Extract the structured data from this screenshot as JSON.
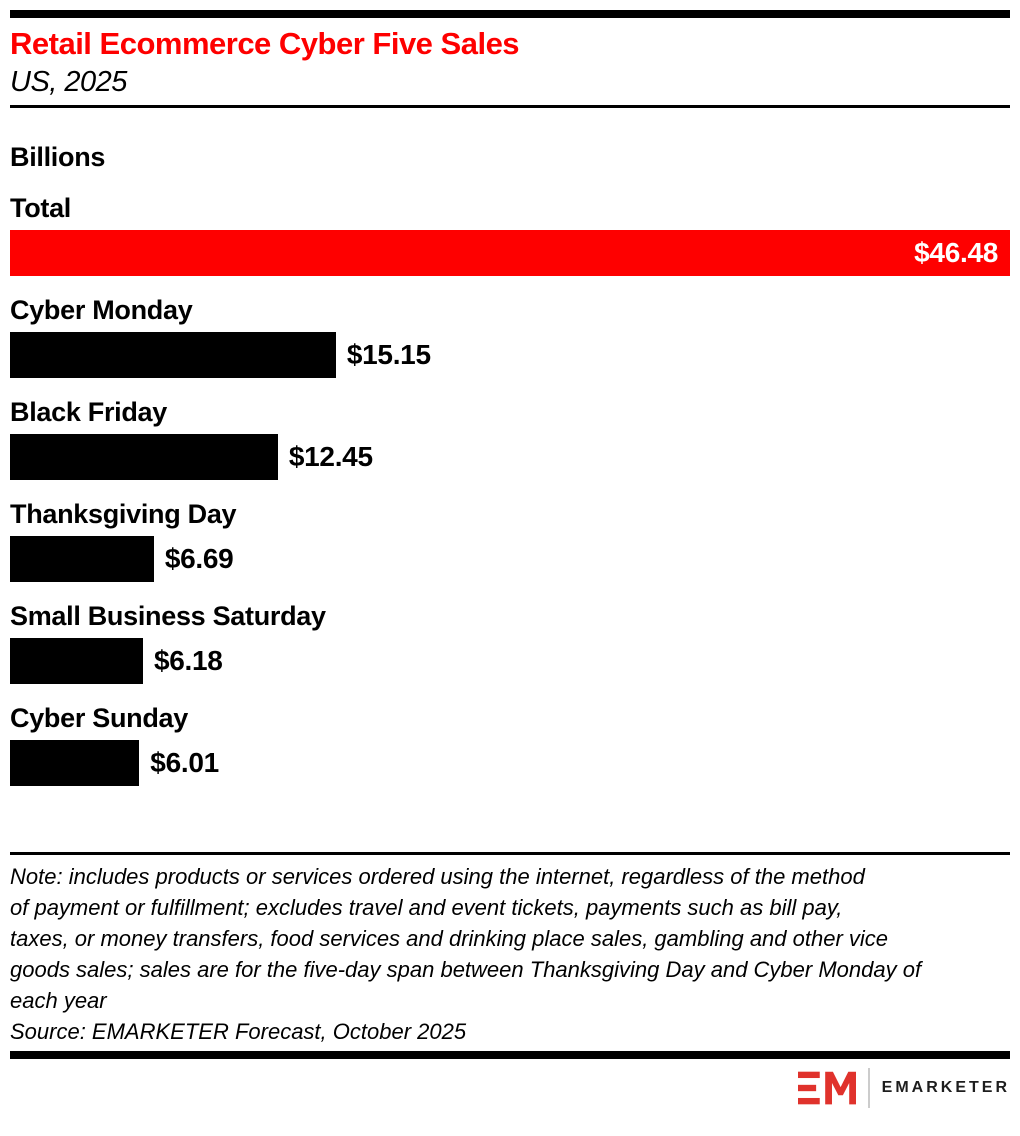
{
  "header": {
    "title": "Retail Ecommerce Cyber Five Sales",
    "subtitle": "US, 2025"
  },
  "chart": {
    "unit_label": "Billions"
  },
  "chart_data": {
    "type": "bar",
    "orientation": "horizontal",
    "title": "Retail Ecommerce Cyber Five Sales",
    "subtitle": "US, 2025",
    "unit": "Billions",
    "categories": [
      "Total",
      "Cyber Monday",
      "Black Friday",
      "Thanksgiving Day",
      "Small Business Saturday",
      "Cyber Sunday"
    ],
    "values": [
      46.48,
      15.15,
      12.45,
      6.69,
      6.18,
      6.01
    ],
    "value_labels": [
      "$46.48",
      "$15.15",
      "$12.45",
      "$6.69",
      "$6.18",
      "$6.01"
    ],
    "bar_colors": [
      "#fe0000",
      "#000000",
      "#000000",
      "#000000",
      "#000000",
      "#000000"
    ],
    "xlim": [
      0,
      46.48
    ],
    "grid": false,
    "legend": false
  },
  "footer": {
    "note_lines": [
      "Note: includes products or services ordered using the internet, regardless of the method",
      "of payment or fulfillment; excludes travel and event tickets, payments such as bill pay,",
      "taxes, or money transfers, food services and drinking place sales, gambling and other vice",
      "goods sales; sales are for the five-day span between Thanksgiving Day and Cyber Monday of",
      "each year"
    ],
    "source": "Source: EMARKETER Forecast, October 2025"
  },
  "branding": {
    "logo_mark": "EM",
    "logo_text": "EMARKETER"
  },
  "colors": {
    "accent_red": "#fe0000",
    "bar_black": "#000000",
    "logo_red": "#e0322c",
    "logo_text_color": "#1e1e1e",
    "divider_gray": "#cccccc"
  }
}
